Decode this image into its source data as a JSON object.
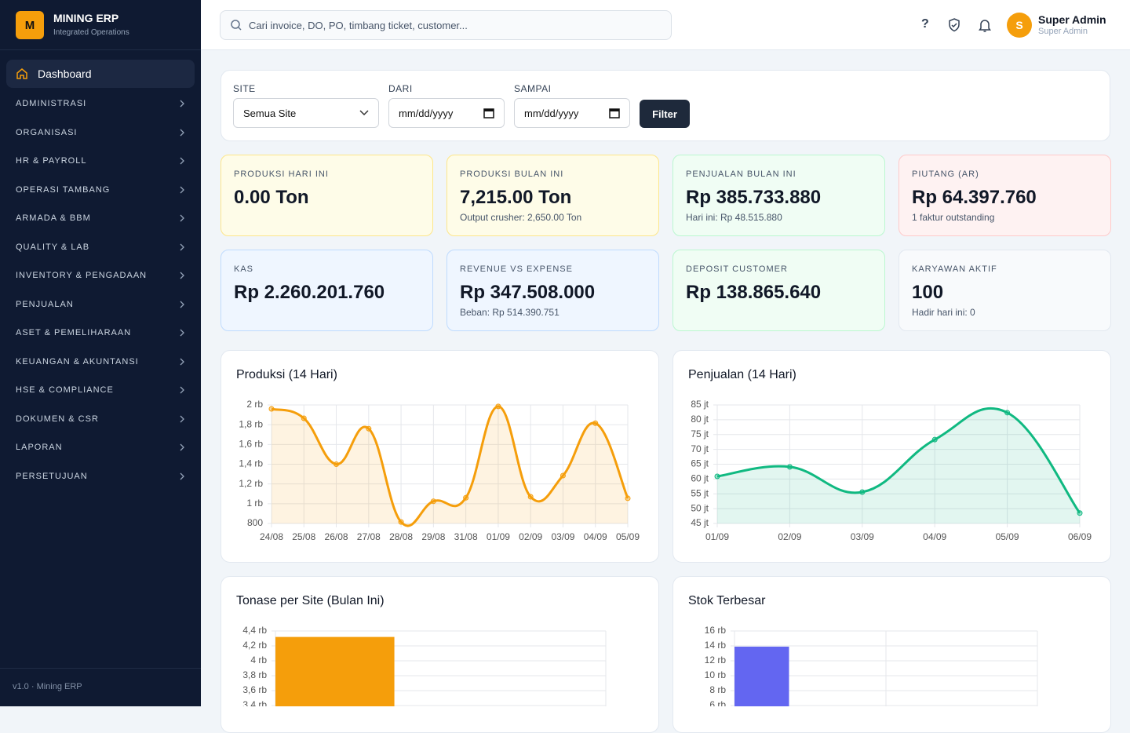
{
  "brand": {
    "logo": "M",
    "name": "MINING ERP",
    "tagline": "Integrated Operations"
  },
  "nav": {
    "active": "Dashboard",
    "items": [
      "ADMINISTRASI",
      "ORGANISASI",
      "HR & PAYROLL",
      "OPERASI TAMBANG",
      "ARMADA & BBM",
      "QUALITY & LAB",
      "INVENTORY & PENGADAAN",
      "PENJUALAN",
      "ASET & PEMELIHARAAN",
      "KEUANGAN & AKUNTANSI",
      "HSE & COMPLIANCE",
      "DOKUMEN & CSR",
      "LAPORAN",
      "PERSETUJUAN"
    ],
    "footer": "v1.0 · Mining ERP"
  },
  "topbar": {
    "search_placeholder": "Cari invoice, DO, PO, timbang ticket, customer...",
    "help": "?",
    "user": {
      "avatar": "S",
      "name": "Super Admin",
      "role": "Super Admin"
    }
  },
  "filter": {
    "site_label": "SITE",
    "site_value": "Semua Site",
    "from_label": "DARI",
    "from_placeholder": "mm/dd/yyyy",
    "to_label": "SAMPAI",
    "to_placeholder": "mm/dd/yyyy",
    "button": "Filter"
  },
  "kpis": [
    {
      "label": "PRODUKSI HARI INI",
      "value": "0.00 Ton",
      "tone": "yellow"
    },
    {
      "label": "PRODUKSI BULAN INI",
      "value": "7,215.00 Ton",
      "sub": "Output crusher: 2,650.00 Ton",
      "tone": "yellow"
    },
    {
      "label": "PENJUALAN BULAN INI",
      "value": "Rp 385.733.880",
      "sub": "Hari ini: Rp 48.515.880",
      "tone": "green"
    },
    {
      "label": "PIUTANG (AR)",
      "value": "Rp 64.397.760",
      "sub": "1 faktur outstanding",
      "tone": "red"
    },
    {
      "label": "KAS",
      "value": "Rp 2.260.201.760",
      "tone": "blue"
    },
    {
      "label": "REVENUE VS EXPENSE",
      "value": "Rp 347.508.000",
      "sub": "Beban: Rp 514.390.751",
      "tone": "blue"
    },
    {
      "label": "DEPOSIT CUSTOMER",
      "value": "Rp 138.865.640",
      "tone": "green"
    },
    {
      "label": "KARYAWAN AKTIF",
      "value": "100",
      "sub": "Hadir hari ini: 0",
      "tone": "gray"
    }
  ],
  "chart_data": [
    {
      "type": "line",
      "title": "Produksi (14 Hari)",
      "categories": [
        "24/08",
        "25/08",
        "26/08",
        "27/08",
        "28/08",
        "29/08",
        "31/08",
        "01/09",
        "02/09",
        "03/09",
        "04/09",
        "05/09"
      ],
      "values": [
        1960,
        1865,
        1400,
        1760,
        815,
        1025,
        1060,
        1985,
        1070,
        1285,
        1815,
        1055
      ],
      "color": "#f59e0b",
      "area": true,
      "grid": true,
      "ylim": [
        800,
        2000
      ],
      "yticks": [
        800,
        {
          "value": 1000,
          "label": "1 rb"
        },
        {
          "value": 1200,
          "label": "1,2 rb"
        },
        {
          "value": 1400,
          "label": "1,4 rb"
        },
        {
          "value": 1600,
          "label": "1,6 rb"
        },
        {
          "value": 1800,
          "label": "1,8 rb"
        },
        {
          "value": 2000,
          "label": "2 rb"
        }
      ]
    },
    {
      "type": "line",
      "title": "Penjualan (14 Hari)",
      "categories": [
        "01/09",
        "02/09",
        "03/09",
        "04/09",
        "05/09",
        "06/09"
      ],
      "values": [
        60900000,
        64100000,
        55600000,
        73300000,
        82400000,
        48515880
      ],
      "color": "#10b981",
      "area": true,
      "grid": true,
      "ylim": [
        45000000,
        85000000
      ],
      "yticks": [
        {
          "value": 45000000,
          "label": "45 jt"
        },
        {
          "value": 50000000,
          "label": "50 jt"
        },
        {
          "value": 55000000,
          "label": "55 jt"
        },
        {
          "value": 60000000,
          "label": "60 jt"
        },
        {
          "value": 65000000,
          "label": "65 jt"
        },
        {
          "value": 70000000,
          "label": "70 jt"
        },
        {
          "value": 75000000,
          "label": "75 jt"
        },
        {
          "value": 80000000,
          "label": "80 jt"
        },
        {
          "value": 85000000,
          "label": "85 jt"
        }
      ]
    },
    {
      "type": "bar",
      "title": "Tonase per Site (Bulan Ini)",
      "categories": [
        null
      ],
      "values": [
        4320
      ],
      "color": "#f59e0b",
      "grid": true,
      "ylim": [
        3400,
        4400
      ],
      "yticks": [
        {
          "value": 3400,
          "label": "3,4 rb"
        },
        {
          "value": 3600,
          "label": "3,6 rb"
        },
        {
          "value": 3800,
          "label": "3,8 rb"
        },
        {
          "value": 4000,
          "label": "4 rb"
        },
        {
          "value": 4200,
          "label": "4,2 rb"
        },
        {
          "value": 4400,
          "label": "4,4 rb"
        }
      ]
    },
    {
      "type": "bar",
      "title": "Stok Terbesar",
      "categories": [
        null
      ],
      "values": [
        13900
      ],
      "color": "#6366f1",
      "grid": true,
      "ylim": [
        6000,
        16000
      ],
      "yticks": [
        {
          "value": 6000,
          "label": "6 rb"
        },
        {
          "value": 8000,
          "label": "8 rb"
        },
        {
          "value": 10000,
          "label": "10 rb"
        },
        {
          "value": 12000,
          "label": "12 rb"
        },
        {
          "value": 14000,
          "label": "14 rb"
        },
        {
          "value": 16000,
          "label": "16 rb"
        }
      ]
    }
  ]
}
